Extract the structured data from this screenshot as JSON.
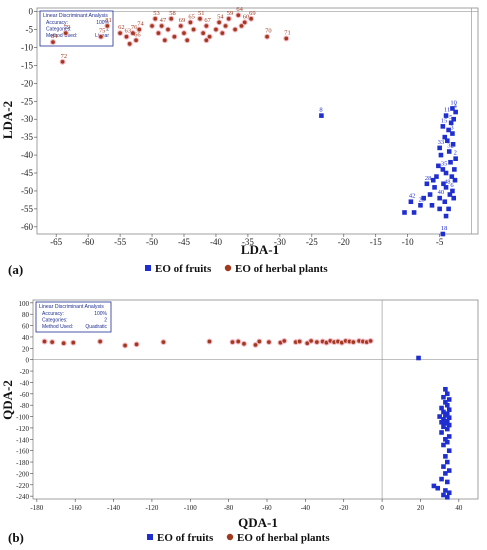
{
  "chart_data": [
    {
      "panel_label": "(a)",
      "type": "scatter",
      "xlabel": "LDA-1",
      "ylabel": "LDA-2",
      "xlim": [
        -68,
        1
      ],
      "ylim": [
        -62,
        1
      ],
      "xticks": [
        -65,
        -60,
        -55,
        -50,
        -45,
        -40,
        -35,
        -30,
        -25,
        -20,
        -15,
        -10,
        -5
      ],
      "yticks": [
        0,
        -5,
        -10,
        -15,
        -20,
        -25,
        -30,
        -35,
        -40,
        -45,
        -50,
        -55,
        -60
      ],
      "info": {
        "title": "Linear Discriminant Analysis",
        "rows": [
          {
            "label": "Accuracy:",
            "value": "100%"
          },
          {
            "label": "Categories:",
            "value": "2"
          },
          {
            "label": "Method Used:",
            "value": "Linear"
          }
        ]
      },
      "grid": false,
      "legend": "bottom",
      "series": [
        {
          "name": "EO of fruits",
          "color": "#1f2ecf",
          "marker": "square",
          "points": [
            {
              "x": -23.5,
              "y": -29,
              "label": "8"
            },
            {
              "x": -3.0,
              "y": -27,
              "label": "10"
            },
            {
              "x": -2.5,
              "y": -28,
              "label": "4"
            },
            {
              "x": -4.0,
              "y": -29,
              "label": "11"
            },
            {
              "x": -3.2,
              "y": -31,
              "label": "5"
            },
            {
              "x": -4.5,
              "y": -32,
              "label": "15"
            },
            {
              "x": -3.0,
              "y": -34,
              "label": "3"
            },
            {
              "x": -5.0,
              "y": -38,
              "label": "33"
            },
            {
              "x": -3.5,
              "y": -39,
              "label": "32"
            },
            {
              "x": -2.5,
              "y": -41,
              "label": "2"
            },
            {
              "x": -4.5,
              "y": -44,
              "label": "35"
            },
            {
              "x": -7.0,
              "y": -48,
              "label": "28"
            },
            {
              "x": -4.0,
              "y": -49,
              "label": "48"
            },
            {
              "x": -3.0,
              "y": -50,
              "label": "6"
            },
            {
              "x": -9.5,
              "y": -53,
              "label": "42"
            },
            {
              "x": -8.0,
              "y": -54,
              "label": "29"
            },
            {
              "x": -5.0,
              "y": -52,
              "label": "40"
            },
            {
              "x": -4.5,
              "y": -62,
              "label": "18"
            },
            {
              "x": -2.8,
              "y": -30
            },
            {
              "x": -3.6,
              "y": -33
            },
            {
              "x": -4.2,
              "y": -35
            },
            {
              "x": -3.8,
              "y": -36
            },
            {
              "x": -2.9,
              "y": -37
            },
            {
              "x": -4.8,
              "y": -40
            },
            {
              "x": -3.3,
              "y": -42
            },
            {
              "x": -5.2,
              "y": -43
            },
            {
              "x": -2.7,
              "y": -44
            },
            {
              "x": -4.0,
              "y": -45
            },
            {
              "x": -5.5,
              "y": -46
            },
            {
              "x": -3.1,
              "y": -46
            },
            {
              "x": -6.0,
              "y": -47
            },
            {
              "x": -2.6,
              "y": -47
            },
            {
              "x": -4.4,
              "y": -48
            },
            {
              "x": -5.8,
              "y": -49
            },
            {
              "x": -3.4,
              "y": -51
            },
            {
              "x": -6.5,
              "y": -51
            },
            {
              "x": -2.8,
              "y": -52
            },
            {
              "x": -4.2,
              "y": -53
            },
            {
              "x": -6.2,
              "y": -54
            },
            {
              "x": -3.6,
              "y": -55
            },
            {
              "x": -5.0,
              "y": -55
            },
            {
              "x": -7.5,
              "y": -52
            },
            {
              "x": -10.5,
              "y": -56
            },
            {
              "x": -9.0,
              "y": -56
            },
            {
              "x": -4.0,
              "y": -57
            }
          ]
        },
        {
          "name": "EO of herbal plants",
          "color": "#a0391e",
          "marker": "circle",
          "points": [
            {
              "x": -65.5,
              "y": -8.5,
              "label": "84"
            },
            {
              "x": -63.5,
              "y": -6,
              "label": "79"
            },
            {
              "x": -64.0,
              "y": -14,
              "label": "72"
            },
            {
              "x": -58.0,
              "y": -7,
              "label": "75"
            },
            {
              "x": -57.0,
              "y": -4,
              "label": "81"
            },
            {
              "x": -55.0,
              "y": -6,
              "label": "62"
            },
            {
              "x": -54.0,
              "y": -7,
              "label": "63"
            },
            {
              "x": -53.0,
              "y": -6,
              "label": "76"
            },
            {
              "x": -52.5,
              "y": -8,
              "label": "66"
            },
            {
              "x": -52.0,
              "y": -5,
              "label": "74"
            },
            {
              "x": -49.5,
              "y": -2,
              "label": "53"
            },
            {
              "x": -48.5,
              "y": -4,
              "label": "47"
            },
            {
              "x": -47.0,
              "y": -2,
              "label": "58"
            },
            {
              "x": -45.5,
              "y": -4,
              "label": "69"
            },
            {
              "x": -44.0,
              "y": -3,
              "label": "65"
            },
            {
              "x": -42.5,
              "y": -2,
              "label": "51"
            },
            {
              "x": -41.5,
              "y": -4,
              "label": "67"
            },
            {
              "x": -39.5,
              "y": -3,
              "label": "54"
            },
            {
              "x": -38.0,
              "y": -2,
              "label": "59"
            },
            {
              "x": -36.5,
              "y": -1,
              "label": "64"
            },
            {
              "x": -35.5,
              "y": -3,
              "label": "60"
            },
            {
              "x": -34.5,
              "y": -2,
              "label": "69"
            },
            {
              "x": -32.0,
              "y": -7,
              "label": "70"
            },
            {
              "x": -29.0,
              "y": -7.5,
              "label": "71"
            },
            {
              "x": -50.0,
              "y": -4
            },
            {
              "x": -49.0,
              "y": -6
            },
            {
              "x": -47.5,
              "y": -5
            },
            {
              "x": -46.5,
              "y": -7
            },
            {
              "x": -45.0,
              "y": -6
            },
            {
              "x": -43.5,
              "y": -5
            },
            {
              "x": -42.0,
              "y": -6
            },
            {
              "x": -41.0,
              "y": -7
            },
            {
              "x": -40.0,
              "y": -5
            },
            {
              "x": -39.0,
              "y": -6
            },
            {
              "x": -38.5,
              "y": -4
            },
            {
              "x": -37.0,
              "y": -5
            },
            {
              "x": -36.0,
              "y": -4
            },
            {
              "x": -48.0,
              "y": -8
            },
            {
              "x": -44.5,
              "y": -8
            },
            {
              "x": -41.5,
              "y": -8
            },
            {
              "x": -53.5,
              "y": -9
            }
          ]
        }
      ]
    },
    {
      "panel_label": "(b)",
      "type": "scatter",
      "xlabel": "QDA-1",
      "ylabel": "QDA-2",
      "xlim": [
        -182,
        50
      ],
      "ylim": [
        -245,
        105
      ],
      "xticks": [
        -180,
        -160,
        -140,
        -120,
        -100,
        -80,
        -60,
        -40,
        -20,
        0,
        20,
        40
      ],
      "yticks": [
        100,
        80,
        60,
        40,
        20,
        0,
        -20,
        -40,
        -60,
        -80,
        -100,
        -120,
        -140,
        -160,
        -180,
        -200,
        -220,
        -240
      ],
      "info": {
        "title": "Linear Discriminant Analysis",
        "rows": [
          {
            "label": "Accuracy:",
            "value": "100%"
          },
          {
            "label": "Categories:",
            "value": "2"
          },
          {
            "label": "Method Used:",
            "value": "Quadratic"
          }
        ]
      },
      "grid": false,
      "legend": "bottom",
      "series": [
        {
          "name": "EO of fruits",
          "color": "#1f2ecf",
          "marker": "square",
          "points": [
            {
              "x": 19,
              "y": 3
            },
            {
              "x": 33,
              "y": -52
            },
            {
              "x": 34,
              "y": -60
            },
            {
              "x": 32,
              "y": -66
            },
            {
              "x": 35,
              "y": -70
            },
            {
              "x": 33,
              "y": -75
            },
            {
              "x": 34,
              "y": -80
            },
            {
              "x": 31,
              "y": -85
            },
            {
              "x": 35,
              "y": -88
            },
            {
              "x": 32,
              "y": -92
            },
            {
              "x": 34,
              "y": -95
            },
            {
              "x": 33,
              "y": -98
            },
            {
              "x": 30,
              "y": -100
            },
            {
              "x": 35,
              "y": -102
            },
            {
              "x": 32,
              "y": -105
            },
            {
              "x": 34,
              "y": -108
            },
            {
              "x": 31,
              "y": -110
            },
            {
              "x": 33,
              "y": -112
            },
            {
              "x": 35,
              "y": -115
            },
            {
              "x": 32,
              "y": -118
            },
            {
              "x": 34,
              "y": -122
            },
            {
              "x": 31,
              "y": -128
            },
            {
              "x": 35,
              "y": -135
            },
            {
              "x": 33,
              "y": -140
            },
            {
              "x": 34,
              "y": -145
            },
            {
              "x": 32,
              "y": -150
            },
            {
              "x": 35,
              "y": -160
            },
            {
              "x": 33,
              "y": -170
            },
            {
              "x": 34,
              "y": -180
            },
            {
              "x": 32,
              "y": -188
            },
            {
              "x": 35,
              "y": -195
            },
            {
              "x": 33,
              "y": -200
            },
            {
              "x": 31,
              "y": -210
            },
            {
              "x": 34,
              "y": -215
            },
            {
              "x": 27,
              "y": -222
            },
            {
              "x": 29,
              "y": -226
            },
            {
              "x": 33,
              "y": -230
            },
            {
              "x": 35,
              "y": -234
            },
            {
              "x": 32,
              "y": -238
            },
            {
              "x": 34,
              "y": -242
            }
          ]
        },
        {
          "name": "EO of herbal plants",
          "color": "#a0391e",
          "marker": "circle",
          "points": [
            {
              "x": -176,
              "y": 32
            },
            {
              "x": -172,
              "y": 31
            },
            {
              "x": -166,
              "y": 29
            },
            {
              "x": -161,
              "y": 30
            },
            {
              "x": -147,
              "y": 32
            },
            {
              "x": -134,
              "y": 25
            },
            {
              "x": -128,
              "y": 27
            },
            {
              "x": -114,
              "y": 31
            },
            {
              "x": -90,
              "y": 32
            },
            {
              "x": -78,
              "y": 31
            },
            {
              "x": -75,
              "y": 32
            },
            {
              "x": -72,
              "y": 28
            },
            {
              "x": -66,
              "y": 26
            },
            {
              "x": -64,
              "y": 32
            },
            {
              "x": -59,
              "y": 31
            },
            {
              "x": -53,
              "y": 30
            },
            {
              "x": -51,
              "y": 33
            },
            {
              "x": -45,
              "y": 31
            },
            {
              "x": -43,
              "y": 32
            },
            {
              "x": -39,
              "y": 29
            },
            {
              "x": -37,
              "y": 33
            },
            {
              "x": -34,
              "y": 31
            },
            {
              "x": -31,
              "y": 32
            },
            {
              "x": -29,
              "y": 30
            },
            {
              "x": -27,
              "y": 33
            },
            {
              "x": -25,
              "y": 31
            },
            {
              "x": -23,
              "y": 32
            },
            {
              "x": -21,
              "y": 30
            },
            {
              "x": -19,
              "y": 33
            },
            {
              "x": -17,
              "y": 32
            },
            {
              "x": -15,
              "y": 31
            },
            {
              "x": -12,
              "y": 33
            },
            {
              "x": -10,
              "y": 32
            },
            {
              "x": -8,
              "y": 31
            },
            {
              "x": -6,
              "y": 33
            }
          ]
        }
      ]
    }
  ]
}
